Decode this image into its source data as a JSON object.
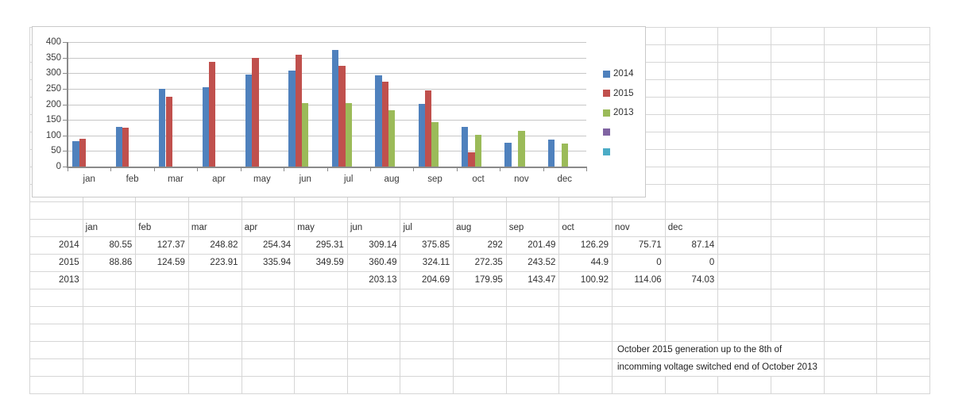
{
  "colors": {
    "series_2014": "#4F81BD",
    "series_2015": "#C0504D",
    "series_2013": "#9BBB59",
    "series_4": "#8064A2",
    "series_5": "#4BACC6",
    "chart_border": "#c9c9c9",
    "chart_gridline": "#c7c7c7",
    "chart_axis": "#8a8a8a",
    "sheet_gridline": "#d6d6d6"
  },
  "chart_data": {
    "type": "bar",
    "title": "",
    "xlabel": "",
    "ylabel": "",
    "categories": [
      "jan",
      "feb",
      "mar",
      "apr",
      "may",
      "jun",
      "jul",
      "aug",
      "sep",
      "oct",
      "nov",
      "dec"
    ],
    "series": [
      {
        "name": "2014",
        "color": "#4F81BD",
        "values": [
          80.55,
          127.37,
          248.82,
          254.34,
          295.31,
          309.14,
          375.85,
          292,
          201.49,
          126.29,
          75.71,
          87.14
        ]
      },
      {
        "name": "2015",
        "color": "#C0504D",
        "values": [
          88.86,
          124.59,
          223.91,
          335.94,
          349.59,
          360.49,
          324.11,
          272.35,
          243.52,
          44.9,
          0,
          0
        ]
      },
      {
        "name": "2013",
        "color": "#9BBB59",
        "values": [
          null,
          null,
          null,
          null,
          null,
          203.13,
          204.69,
          179.95,
          143.47,
          100.92,
          114.06,
          74.03
        ]
      },
      {
        "name": "",
        "color": "#8064A2",
        "values": []
      },
      {
        "name": "",
        "color": "#4BACC6",
        "values": []
      }
    ],
    "ylim": [
      0,
      400
    ],
    "ytick_step": 50,
    "grid": true,
    "legend_position": "right"
  },
  "table": {
    "column_headers": [
      "jan",
      "feb",
      "mar",
      "apr",
      "may",
      "jun",
      "jul",
      "aug",
      "sep",
      "oct",
      "nov",
      "dec"
    ],
    "rows": [
      {
        "label": "2014",
        "values": [
          "80.55",
          "127.37",
          "248.82",
          "254.34",
          "295.31",
          "309.14",
          "375.85",
          "292",
          "201.49",
          "126.29",
          "75.71",
          "87.14"
        ]
      },
      {
        "label": "2015",
        "values": [
          "88.86",
          "124.59",
          "223.91",
          "335.94",
          "349.59",
          "360.49",
          "324.11",
          "272.35",
          "243.52",
          "44.9",
          "0",
          "0"
        ]
      },
      {
        "label": "2013",
        "values": [
          "",
          "",
          "",
          "",
          "",
          "203.13",
          "204.69",
          "179.95",
          "143.47",
          "100.92",
          "114.06",
          "74.03"
        ]
      }
    ]
  },
  "notes": {
    "line1": "October 2015 generation up to the 8th of",
    "line2": "incomming voltage switched end of October 2013"
  }
}
